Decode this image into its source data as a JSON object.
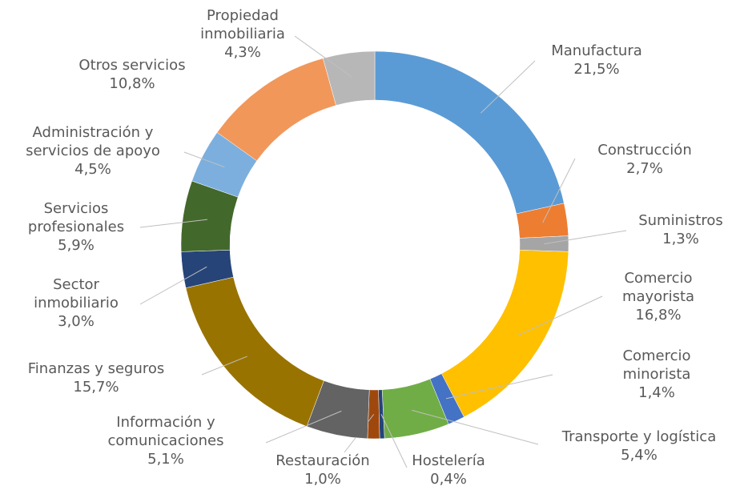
{
  "chart_data": {
    "type": "donut",
    "categories": [
      "Manufactura",
      "Construcción",
      "Suministros",
      "Comercio\nmayorista",
      "Comercio\nminorista",
      "Transporte y logística",
      "Hostelería",
      "Restauración",
      "Información y\ncomunicaciones",
      "Finanzas y seguros",
      "Sector\ninmobiliario",
      "Servicios\nprofesionales",
      "Administración y\nservicios de apoyo",
      "Otros servicios",
      "Propiedad\ninmobiliaria"
    ],
    "values": [
      21.5,
      2.7,
      1.3,
      16.8,
      1.4,
      5.4,
      0.4,
      1.0,
      5.1,
      15.7,
      3.0,
      5.9,
      4.5,
      10.8,
      4.3
    ],
    "value_labels": [
      "21,5%",
      "2,7%",
      "1,3%",
      "16,8%",
      "1,4%",
      "5,4%",
      "0,4%",
      "1,0%",
      "5,1%",
      "15,7%",
      "3,0%",
      "5,9%",
      "4,5%",
      "10,8%",
      "4,3%"
    ],
    "colors": [
      "#5b9bd5",
      "#ed7d31",
      "#a5a5a5",
      "#ffc000",
      "#4472c4",
      "#70ad47",
      "#264478",
      "#9e480e",
      "#636363",
      "#997300",
      "#264478",
      "#43682b",
      "#7cafdd",
      "#f1975a",
      "#b7b7b7"
    ]
  }
}
